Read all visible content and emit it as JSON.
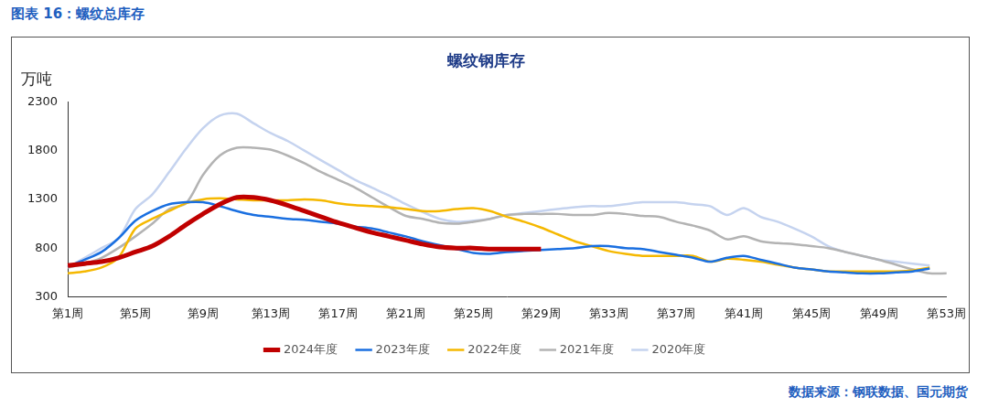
{
  "figure_title": "图表 16：螺纹总库存",
  "source": "数据来源：钢联数据、国元期货",
  "chart_data": {
    "type": "line",
    "title": "螺纹钢库存",
    "ylabel": "万吨",
    "categories": [
      "第1周",
      null,
      null,
      null,
      "第5周",
      null,
      null,
      null,
      "第9周",
      null,
      null,
      null,
      "第13周",
      null,
      null,
      null,
      "第17周",
      null,
      null,
      null,
      "第21周",
      null,
      null,
      null,
      "第25周",
      null,
      null,
      null,
      "第29周",
      null,
      null,
      null,
      "第33周",
      null,
      null,
      null,
      "第37周",
      null,
      null,
      null,
      "第41周",
      null,
      null,
      null,
      "第45周",
      null,
      null,
      null,
      "第49周",
      null,
      null,
      null,
      "第53周"
    ],
    "ylim": [
      300,
      2300
    ],
    "yticks": [
      300,
      800,
      1300,
      1800,
      2300
    ],
    "grid": false,
    "legend": "bottom",
    "series": [
      {
        "name": "2024年度",
        "color": "#c00000",
        "values": [
          620,
          640,
          660,
          700,
          760,
          820,
          920,
          1040,
          1150,
          1250,
          1320,
          1320,
          1290,
          1240,
          1180,
          1120,
          1060,
          1010,
          960,
          920,
          880,
          840,
          810,
          800,
          800,
          790,
          790,
          790,
          790,
          null,
          null,
          null,
          null,
          null,
          null,
          null,
          null,
          null,
          null,
          null,
          null,
          null,
          null,
          null,
          null,
          null,
          null,
          null,
          null,
          null,
          null,
          null,
          null
        ]
      },
      {
        "name": "2023年度",
        "color": "#1a6fe0",
        "values": [
          610,
          680,
          760,
          900,
          1080,
          1180,
          1250,
          1270,
          1270,
          1230,
          1180,
          1140,
          1120,
          1100,
          1090,
          1070,
          1050,
          1020,
          1000,
          960,
          920,
          870,
          830,
          790,
          750,
          740,
          760,
          770,
          780,
          790,
          800,
          820,
          820,
          800,
          790,
          760,
          730,
          700,
          660,
          700,
          720,
          680,
          640,
          600,
          580,
          560,
          550,
          540,
          540,
          550,
          560,
          590,
          null
        ]
      },
      {
        "name": "2022年度",
        "color": "#f5b800",
        "values": [
          540,
          560,
          600,
          700,
          1000,
          1100,
          1180,
          1260,
          1300,
          1310,
          1300,
          1290,
          1290,
          1290,
          1300,
          1290,
          1260,
          1240,
          1230,
          1220,
          1200,
          1180,
          1180,
          1200,
          1210,
          1180,
          1120,
          1070,
          1010,
          940,
          870,
          820,
          770,
          740,
          720,
          720,
          720,
          720,
          660,
          690,
          680,
          660,
          630,
          600,
          580,
          560,
          560,
          560,
          560,
          560,
          570,
          600,
          null
        ]
      },
      {
        "name": "2021年度",
        "color": "#b3b3b3",
        "values": [
          600,
          640,
          700,
          800,
          920,
          1050,
          1200,
          1260,
          1550,
          1750,
          1830,
          1830,
          1810,
          1750,
          1670,
          1580,
          1500,
          1420,
          1320,
          1220,
          1130,
          1100,
          1060,
          1050,
          1070,
          1100,
          1140,
          1150,
          1150,
          1150,
          1140,
          1140,
          1160,
          1150,
          1130,
          1120,
          1070,
          1030,
          980,
          890,
          920,
          870,
          850,
          840,
          820,
          800,
          760,
          720,
          680,
          630,
          580,
          540,
          540
        ]
      },
      {
        "name": "2020年度",
        "color": "#c5d3ef",
        "values": [
          600,
          700,
          800,
          900,
          1200,
          1350,
          1580,
          1820,
          2030,
          2160,
          2180,
          2080,
          1980,
          1900,
          1800,
          1700,
          1600,
          1500,
          1420,
          1340,
          1250,
          1170,
          1100,
          1070,
          1080,
          1100,
          1140,
          1160,
          1180,
          1200,
          1220,
          1230,
          1230,
          1250,
          1270,
          1270,
          1270,
          1250,
          1230,
          1140,
          1210,
          1120,
          1070,
          1000,
          920,
          820,
          760,
          720,
          680,
          660,
          640,
          620,
          null
        ]
      }
    ]
  }
}
